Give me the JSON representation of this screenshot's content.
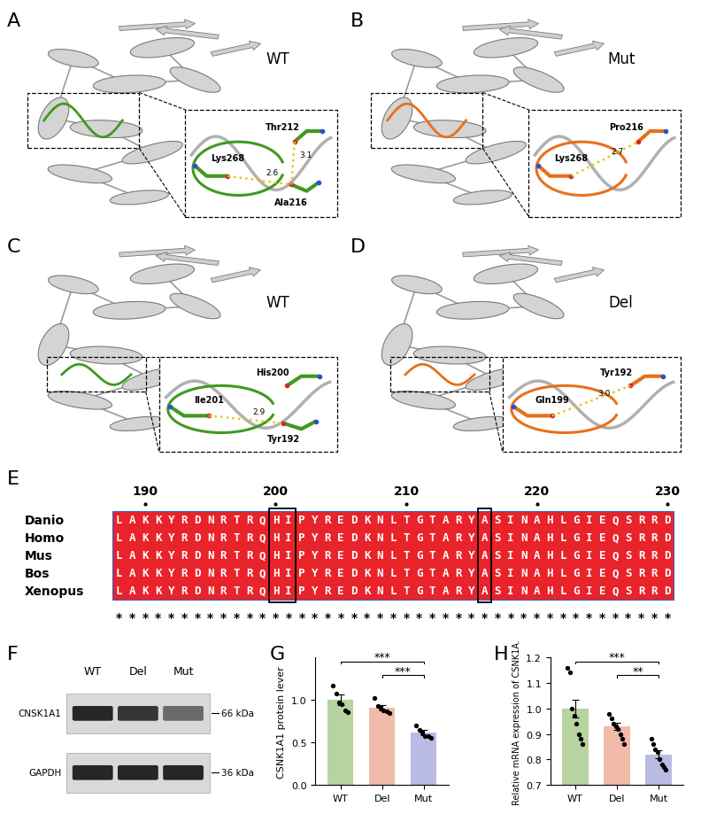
{
  "panel_labels": [
    "A",
    "B",
    "C",
    "D",
    "E",
    "F",
    "G",
    "H"
  ],
  "structures": [
    {
      "label": "WT",
      "color": "#3f9a1f",
      "residues": [
        "Lys268",
        "Thr212",
        "Ala216"
      ],
      "bonds": [
        {
          "from": "Lys268",
          "to": "Ala216",
          "distance": 2.6
        },
        {
          "from": "Thr212",
          "to": "Ala216",
          "distance": 3.1
        }
      ]
    },
    {
      "label": "Mut",
      "color": "#e8701a",
      "residues": [
        "Lys268",
        "Pro216"
      ],
      "bonds": [
        {
          "from": "Lys268",
          "to": "Pro216",
          "distance": 2.7
        }
      ]
    },
    {
      "label": "WT",
      "color": "#3f9a1f",
      "residues": [
        "Ile201",
        "His200",
        "Tyr192"
      ],
      "bonds": [
        {
          "from": "Ile201",
          "to": "Tyr192",
          "distance": 2.9
        }
      ]
    },
    {
      "label": "Del",
      "color": "#e8701a",
      "residues": [
        "Gln199",
        "Tyr192"
      ],
      "bonds": [
        {
          "from": "Gln199",
          "to": "Tyr192",
          "distance": 3.0
        }
      ]
    }
  ],
  "alignment": {
    "start": 188,
    "ruler": [
      190,
      200,
      210,
      220,
      230
    ],
    "sequences": [
      {
        "name": "Danio",
        "sequence": "LAKKYRDNRTRQHIPYREDKNLTGTARYASINAHLGIEQSRRD"
      },
      {
        "name": "Homo",
        "sequence": "LAKKYRDNRTRQHIPYREDKNLTGTARYASINAHLGIEQSRRD"
      },
      {
        "name": "Mus",
        "sequence": "LAKKYRDNRTRQHIPYREDKNLTGTARYASINAHLGIEQSRRD"
      },
      {
        "name": "Bos",
        "sequence": "LAKKYRDNRTRQHIPYREDKNLTGTARYASINAHLGIEQSRRD"
      },
      {
        "name": "Xenopus",
        "sequence": "LAKKYRDNRTRQHIPYREDKNLTGTARYASINAHLGIEQSRRD"
      }
    ],
    "boxed": [
      [
        200,
        201
      ],
      [
        216,
        216
      ]
    ],
    "conservation": "*******************************************"
  },
  "western_blot": {
    "lanes": [
      "WT",
      "Del",
      "Mut"
    ],
    "proteins": [
      {
        "name": "CNSK1A1",
        "size": "66 kDa"
      },
      {
        "name": "GAPDH",
        "size": "36 kDa"
      }
    ]
  },
  "chart_data": [
    {
      "type": "bar",
      "y_label": "CSNK1A1 protein lever",
      "categories": [
        "WT",
        "Del",
        "Mut"
      ],
      "values": [
        1.0,
        0.91,
        0.62
      ],
      "errors": [
        0.06,
        0.03,
        0.03
      ],
      "points": [
        [
          1.17,
          1.07,
          0.97,
          0.95,
          0.88,
          0.86
        ],
        [
          1.02,
          0.93,
          0.91,
          0.88,
          0.87,
          0.85
        ],
        [
          0.7,
          0.65,
          0.62,
          0.58,
          0.57,
          0.55
        ]
      ],
      "colors": [
        "#b7d3a0",
        "#f2bba9",
        "#babbe3"
      ],
      "ylim": [
        0,
        1.5
      ],
      "yticks": [
        {
          "value": 0,
          "label": "0.0"
        },
        0.5,
        {
          "value": 1,
          "label": "1.0"
        }
      ],
      "significance": [
        {
          "from": "WT",
          "to": "Mut",
          "label": "***"
        },
        {
          "from": "Del",
          "to": "Mut",
          "label": "***"
        }
      ]
    },
    {
      "type": "bar",
      "y_label": "Relative mRNA expression of CSNK1A.",
      "categories": [
        "WT",
        "Del",
        "Mut"
      ],
      "values": [
        1.0,
        0.93,
        0.82
      ],
      "errors": [
        0.035,
        0.015,
        0.015
      ],
      "points": [
        [
          1.16,
          1.14,
          1.0,
          0.97,
          0.94,
          0.9,
          0.88,
          0.86
        ],
        [
          0.98,
          0.96,
          0.94,
          0.93,
          0.92,
          0.9,
          0.88,
          0.86
        ],
        [
          0.88,
          0.86,
          0.84,
          0.83,
          0.8,
          0.78,
          0.77,
          0.76
        ]
      ],
      "colors": [
        "#b7d3a0",
        "#f2bba9",
        "#babbe3"
      ],
      "ylim": [
        0.7,
        1.2
      ],
      "yticks": [
        0.7,
        0.8,
        0.9,
        {
          "value": 1,
          "label": "1.0"
        },
        1.1,
        1.2
      ],
      "significance": [
        {
          "from": "WT",
          "to": "Mut",
          "label": "***"
        },
        {
          "from": "Del",
          "to": "Mut",
          "label": "**"
        }
      ]
    }
  ]
}
